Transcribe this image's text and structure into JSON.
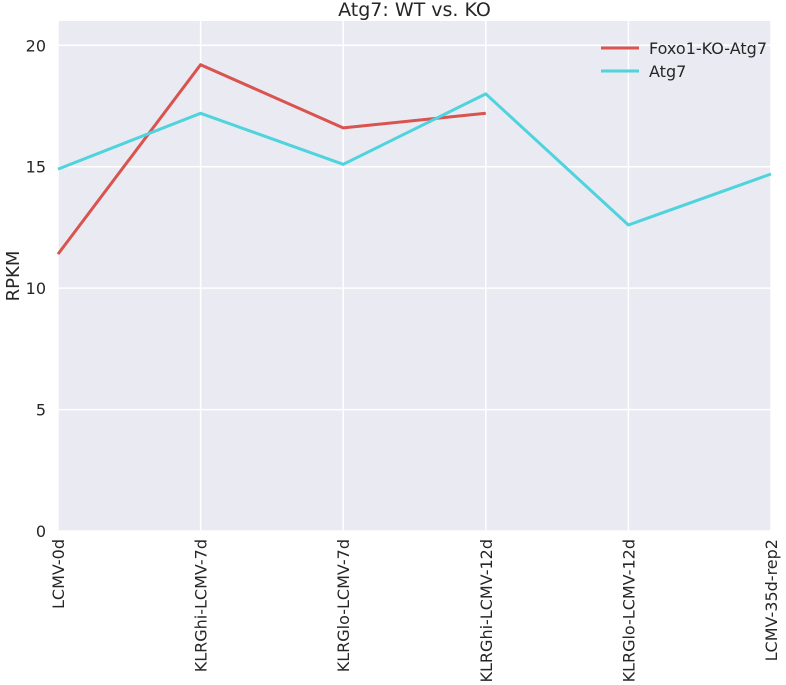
{
  "chart_data": {
    "type": "line",
    "title": "Atg7: WT vs. KO",
    "xlabel": "",
    "ylabel": "RPKM",
    "categories": [
      "LCMV-0d",
      "KLRGhi-LCMV-7d",
      "KLRGlo-LCMV-7d",
      "KLRGhi-LCMV-12d",
      "KLRGlo-LCMV-12d",
      "LCMV-35d-rep2"
    ],
    "yticks": [
      0,
      5,
      10,
      15,
      20
    ],
    "ylim": [
      0,
      21
    ],
    "grid": true,
    "legend": "top-right",
    "series": [
      {
        "name": "Foxo1-KO-Atg7",
        "color": "#d9534f",
        "values": [
          11.4,
          19.2,
          16.6,
          17.2,
          null,
          null
        ]
      },
      {
        "name": "Atg7",
        "color": "#4fd3dd",
        "values": [
          14.9,
          17.2,
          15.1,
          18.0,
          12.6,
          14.7
        ]
      }
    ]
  },
  "style": {
    "plot_bg": "#eaeaf2",
    "grid_color": "#ffffff"
  }
}
